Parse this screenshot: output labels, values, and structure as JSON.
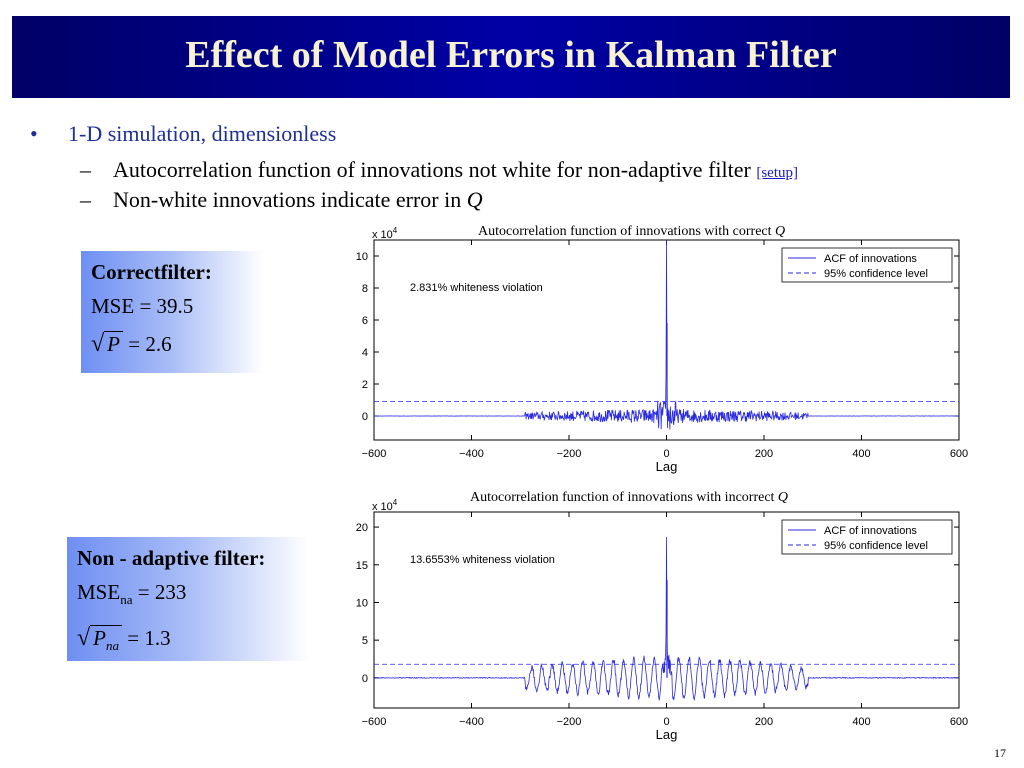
{
  "slide": {
    "title": "Effect of Model Errors in Kalman Filter",
    "page_number": "17"
  },
  "bullets": {
    "main": "1-D simulation, dimensionless",
    "sub1_text": "Autocorrelation function of innovations not white for non-adaptive filter",
    "sub1_link": "[setup]",
    "sub2_text": "Non-white innovations indicate error in",
    "sub2_var": "Q"
  },
  "boxes": {
    "correct": {
      "heading": "Correctfilter:",
      "mse_label": "MSE",
      "mse_value": "39.5",
      "sqrt_label": "P",
      "sqrt_value": "2.6"
    },
    "nonadaptive": {
      "heading": "Non - adaptive filter:",
      "mse_label": "MSE",
      "mse_sub": "na",
      "mse_value": "233",
      "sqrt_label": "P",
      "sqrt_sub": "na",
      "sqrt_value": "1.3"
    }
  },
  "colors": {
    "title_bg": "#000080",
    "title_text": "#f7f3d2",
    "bullet_text": "#1f2f9a",
    "series": "#2a2ae0",
    "box_gradient_start": "#6f8ff2"
  },
  "chart_data": [
    {
      "type": "line",
      "title": "Autocorrelation function of innovations with correct",
      "title_var": "Q",
      "xlabel": "Lag",
      "ylabel": "",
      "exponent": "x 10",
      "exponent_power": "4",
      "xlim": [
        -600,
        600
      ],
      "ylim": [
        -1.5,
        11
      ],
      "xticks": [
        -600,
        -400,
        -200,
        0,
        200,
        400,
        600
      ],
      "xtick_labels": [
        "−600",
        "−400",
        "−200",
        "0",
        "200",
        "400",
        "600"
      ],
      "yticks": [
        0,
        2,
        4,
        6,
        8,
        10
      ],
      "ytick_labels": [
        "0",
        "2",
        "4",
        "6",
        "8",
        "10"
      ],
      "grid": false,
      "legend_position": "top-right",
      "annotation": "2.831% whiteness violation",
      "series": [
        {
          "name": "ACF of innovations",
          "style": "solid",
          "peak": 11,
          "side_peak": 5.8,
          "noise_amp": 0.45,
          "support": 290,
          "kind": "noisy"
        },
        {
          "name": "95% confidence level",
          "style": "dashed",
          "value": 0.9
        }
      ]
    },
    {
      "type": "line",
      "title": "Autocorrelation function of innovations with incorrect",
      "title_var": "Q",
      "xlabel": "Lag",
      "ylabel": "",
      "exponent": "x 10",
      "exponent_power": "4",
      "xlim": [
        -600,
        600
      ],
      "ylim": [
        -4,
        22
      ],
      "xticks": [
        -600,
        -400,
        -200,
        0,
        200,
        400,
        600
      ],
      "xtick_labels": [
        "−600",
        "−400",
        "−200",
        "0",
        "200",
        "400",
        "600"
      ],
      "yticks": [
        0,
        5,
        10,
        15,
        20
      ],
      "ytick_labels": [
        "0",
        "5",
        "10",
        "15",
        "20"
      ],
      "grid": false,
      "legend_position": "top-right",
      "annotation": "13.6553% whiteness violation",
      "series": [
        {
          "name": "ACF of innovations",
          "style": "solid",
          "peak": 18.7,
          "side_peak": 13,
          "noise_amp": 2.6,
          "support": 290,
          "kind": "oscillatory"
        },
        {
          "name": "95% confidence level",
          "style": "dashed",
          "value": 1.8
        }
      ]
    }
  ]
}
